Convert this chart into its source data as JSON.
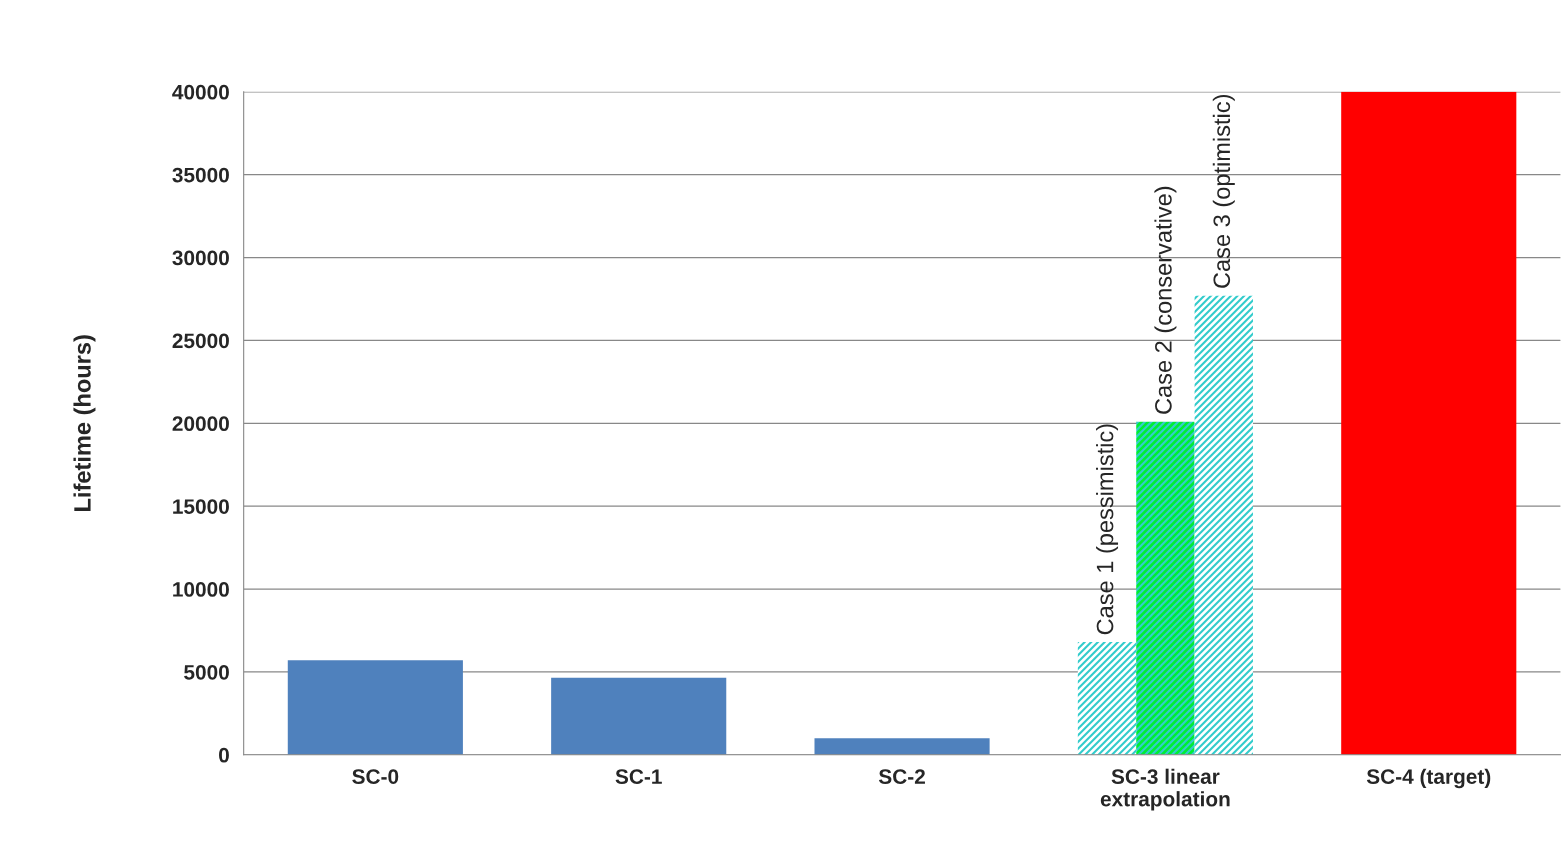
{
  "chart_data": {
    "type": "bar",
    "ylabel": "Lifetime (hours)",
    "categories": [
      "SC-0",
      "SC-1",
      "SC-2",
      "SC-3 linear\nextrapolation",
      "SC-4 (target)"
    ],
    "series": [
      {
        "values": [
          5700,
          4650,
          1000,
          null,
          40000
        ],
        "colors": [
          "#4f81bd",
          "#4f81bd",
          "#4f81bd",
          null,
          "#ff0000"
        ]
      },
      {
        "name": "Case 1 (pessimistic)",
        "color": "#33cccc",
        "values": [
          null,
          null,
          null,
          6800,
          null
        ]
      },
      {
        "name": "Case 2 (conservative)",
        "color": "#00ee33",
        "values": [
          null,
          null,
          null,
          20100,
          null
        ]
      },
      {
        "name": "Case 3 (optimistic)",
        "color": "#33cccc",
        "values": [
          null,
          null,
          null,
          27700,
          null
        ]
      }
    ],
    "ylim": [
      0,
      40000
    ],
    "yticks": [
      0,
      5000,
      10000,
      15000,
      20000,
      25000,
      30000,
      35000,
      40000
    ],
    "grid": "y",
    "legend": false
  }
}
